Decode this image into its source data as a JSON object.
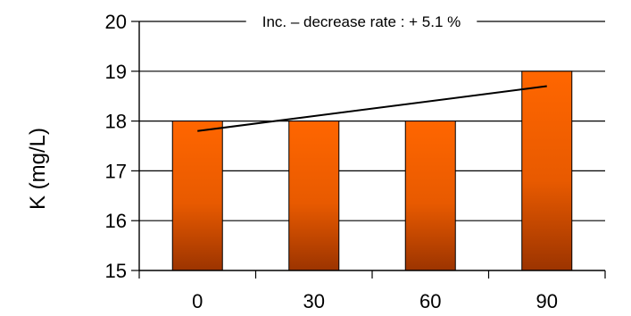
{
  "chart_data": {
    "type": "bar",
    "categories": [
      "0",
      "30",
      "60",
      "90"
    ],
    "values": [
      18,
      18,
      18,
      19
    ],
    "ylabel": "K (mg/L)",
    "ylim": [
      15,
      20
    ],
    "yticks": [
      "15",
      "16",
      "17",
      "18",
      "19",
      "20"
    ],
    "annotation": "Inc. – decrease rate : + 5.1 %",
    "trendline": {
      "start": 17.8,
      "end": 18.7
    },
    "grid": true,
    "legend": "none",
    "colors": {
      "bar_top": "#FF6600",
      "bar_bottom": "#9C3400",
      "bar_stroke": "#000000"
    }
  }
}
